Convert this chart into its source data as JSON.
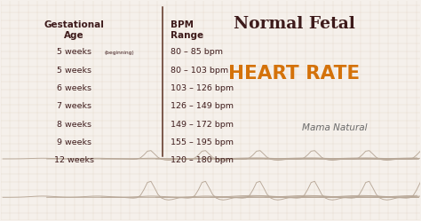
{
  "bg_color": "#f5f0eb",
  "title_line1": "Normal Fetal",
  "title_line2": "HEART RATE",
  "title_line1_color": "#3d1a1a",
  "title_line2_color": "#d4720a",
  "header_color": "#3d1a1a",
  "rows": [
    {
      "age": "5 weeks",
      "age_suffix": "(beginning)",
      "bpm": "80 – 85 bpm"
    },
    {
      "age": "5 weeks",
      "age_suffix": "",
      "bpm": "80 – 103 bpm"
    },
    {
      "age": "6 weeks",
      "age_suffix": "",
      "bpm": "103 – 126 bpm"
    },
    {
      "age": "7 weeks",
      "age_suffix": "",
      "bpm": "126 – 149 bpm"
    },
    {
      "age": "8 weeks",
      "age_suffix": "",
      "bpm": "149 – 172 bpm"
    },
    {
      "age": "9 weeks",
      "age_suffix": "",
      "bpm": "155 – 195 bpm"
    },
    {
      "age": "12 weeks",
      "age_suffix": "",
      "bpm": "120 – 180 bpm"
    }
  ],
  "row_color": "#3d1a1a",
  "divider_color": "#5a3020",
  "brand": "Mama Natural",
  "brand_color": "#6a6a6a",
  "ecg_color": "#b8a898",
  "grid_color": "#e0cfc0"
}
